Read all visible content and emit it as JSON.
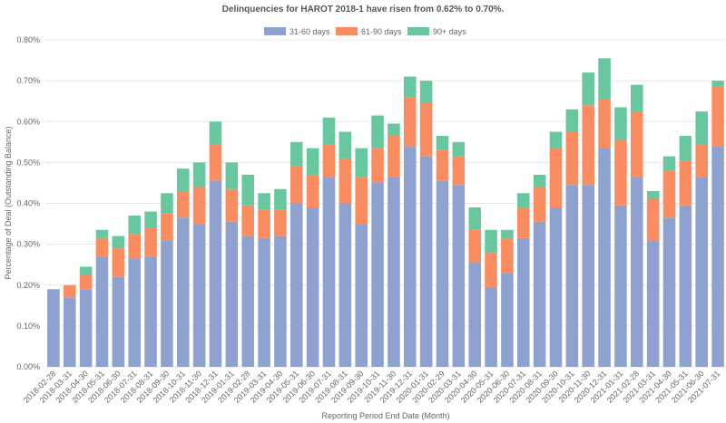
{
  "chart_data": {
    "type": "bar",
    "stacked": true,
    "title": "Delinquencies for HAROT 2018-1 have risen from 0.62% to 0.70%.",
    "xlabel": "Reporting Period End Date (Month)",
    "ylabel": "Percentage of Deal (Outstanding Balance)",
    "ylim": [
      0,
      0.8
    ],
    "yticks": [
      0,
      0.1,
      0.2,
      0.3,
      0.4,
      0.5,
      0.6,
      0.7,
      0.8
    ],
    "ytick_labels": [
      "0.00%",
      "0.10%",
      "0.20%",
      "0.30%",
      "0.40%",
      "0.50%",
      "0.60%",
      "0.70%",
      "0.80%"
    ],
    "grid": true,
    "legend_position": "top-center",
    "categories": [
      "2018-02-28",
      "2018-03-31",
      "2018-04-30",
      "2018-05-31",
      "2018-06-30",
      "2018-07-31",
      "2018-08-31",
      "2018-09-30",
      "2018-10-31",
      "2018-11-30",
      "2018-12-31",
      "2019-01-31",
      "2019-02-28",
      "2019-03-31",
      "2019-04-30",
      "2019-05-31",
      "2019-06-30",
      "2019-07-31",
      "2019-08-31",
      "2019-09-30",
      "2019-10-31",
      "2019-11-30",
      "2019-12-31",
      "2020-01-31",
      "2020-02-29",
      "2020-03-31",
      "2020-04-30",
      "2020-05-31",
      "2020-06-30",
      "2020-07-31",
      "2020-08-31",
      "2020-09-30",
      "2020-10-31",
      "2020-11-30",
      "2020-12-31",
      "2021-01-31",
      "2021-02-28",
      "2021-03-31",
      "2021-04-30",
      "2021-05-31",
      "2021-06-30",
      "2021-07-31"
    ],
    "series": [
      {
        "name": "31-60 days",
        "color": "#8fa2cf",
        "values": [
          0.19,
          0.17,
          0.19,
          0.27,
          0.22,
          0.265,
          0.27,
          0.31,
          0.365,
          0.35,
          0.455,
          0.355,
          0.32,
          0.315,
          0.32,
          0.4,
          0.39,
          0.465,
          0.4,
          0.35,
          0.45,
          0.465,
          0.54,
          0.515,
          0.455,
          0.445,
          0.255,
          0.195,
          0.23,
          0.315,
          0.355,
          0.39,
          0.445,
          0.445,
          0.535,
          0.395,
          0.465,
          0.31,
          0.365,
          0.395,
          0.465,
          0.54
        ]
      },
      {
        "name": "61-90 days",
        "color": "#f98c60",
        "values": [
          0,
          0.03,
          0.035,
          0.045,
          0.07,
          0.06,
          0.07,
          0.065,
          0.065,
          0.09,
          0.09,
          0.08,
          0.075,
          0.07,
          0.065,
          0.09,
          0.08,
          0.08,
          0.11,
          0.115,
          0.085,
          0.1,
          0.12,
          0.13,
          0.075,
          0.07,
          0.08,
          0.085,
          0.085,
          0.075,
          0.085,
          0.145,
          0.13,
          0.195,
          0.12,
          0.16,
          0.16,
          0.1,
          0.115,
          0.11,
          0.08,
          0.145
        ]
      },
      {
        "name": "90+ days",
        "color": "#69c7a0",
        "values": [
          0,
          0,
          0.02,
          0.02,
          0.03,
          0.045,
          0.04,
          0.05,
          0.055,
          0.06,
          0.055,
          0.065,
          0.075,
          0.04,
          0.05,
          0.06,
          0.065,
          0.065,
          0.065,
          0.07,
          0.08,
          0.03,
          0.05,
          0.055,
          0.035,
          0.035,
          0.055,
          0.055,
          0.02,
          0.035,
          0.03,
          0.04,
          0.055,
          0.08,
          0.1,
          0.08,
          0.065,
          0.02,
          0.035,
          0.06,
          0.08,
          0.015
        ]
      }
    ]
  }
}
